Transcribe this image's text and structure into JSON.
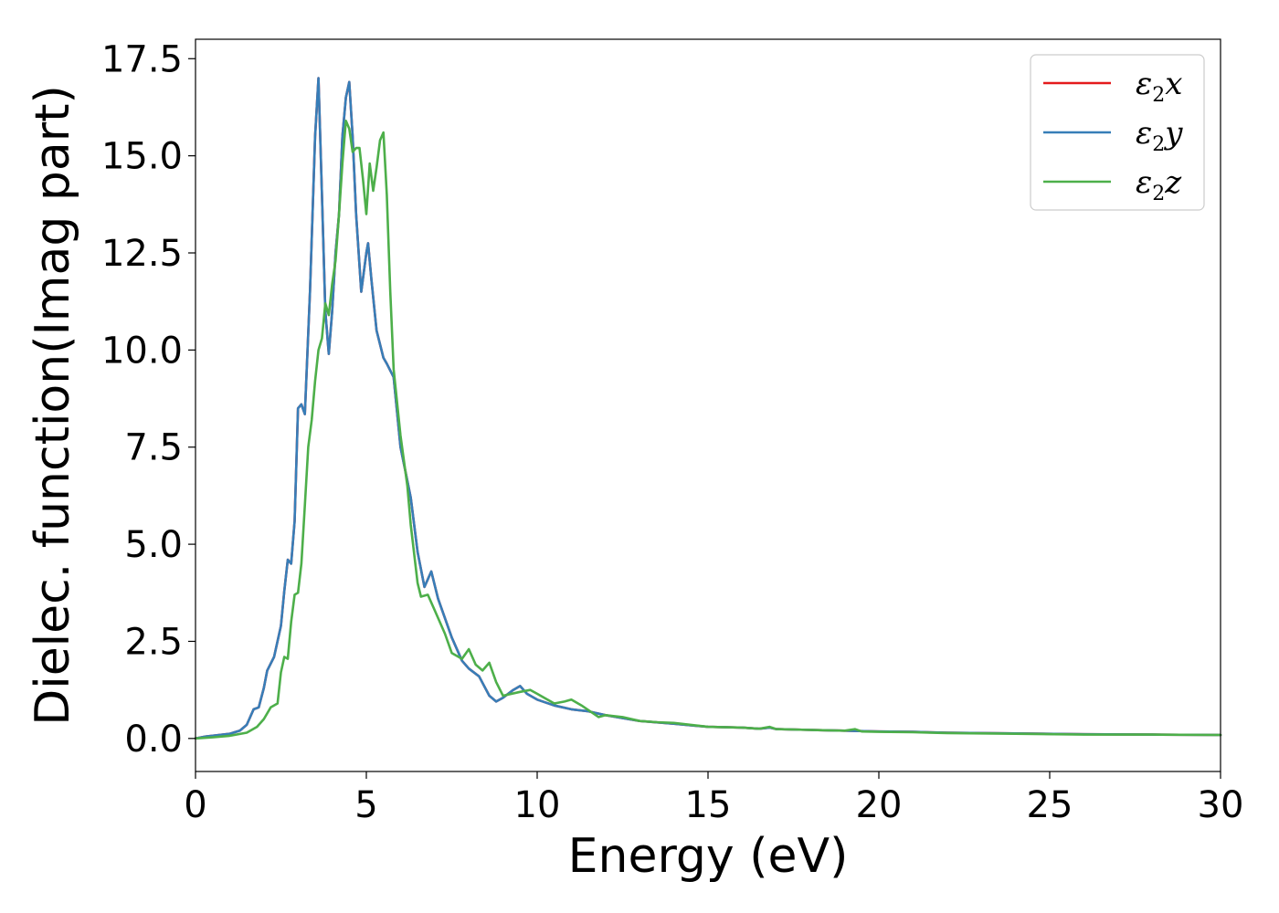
{
  "chart_data": {
    "type": "line",
    "xlabel": "Energy (eV)",
    "ylabel": "Dielec. function(Imag part)",
    "xlim": [
      0,
      30
    ],
    "ylim": [
      -0.85,
      18.0
    ],
    "xticks": [
      0,
      5,
      10,
      15,
      20,
      25,
      30
    ],
    "yticks": [
      0.0,
      2.5,
      5.0,
      7.5,
      10.0,
      12.5,
      15.0,
      17.5
    ],
    "xtick_labels": [
      "0",
      "5",
      "10",
      "15",
      "20",
      "25",
      "30"
    ],
    "ytick_labels": [
      "0.0",
      "2.5",
      "5.0",
      "7.5",
      "10.0",
      "12.5",
      "15.0",
      "17.5"
    ],
    "grid": false,
    "legend_position": "top-right",
    "series": [
      {
        "name": "ε2x",
        "legend": {
          "base": "ε",
          "sub": "2",
          "tail": "x"
        },
        "color": "#e41a1c",
        "hidden_under": "ε2y",
        "points": [
          [
            0,
            0.0
          ],
          [
            0.3,
            0.05
          ],
          [
            0.6,
            0.08
          ],
          [
            1.0,
            0.12
          ],
          [
            1.3,
            0.2
          ],
          [
            1.5,
            0.35
          ],
          [
            1.7,
            0.75
          ],
          [
            1.85,
            0.8
          ],
          [
            2.0,
            1.3
          ],
          [
            2.1,
            1.75
          ],
          [
            2.3,
            2.1
          ],
          [
            2.5,
            2.9
          ],
          [
            2.6,
            3.8
          ],
          [
            2.7,
            4.6
          ],
          [
            2.8,
            4.5
          ],
          [
            2.9,
            5.6
          ],
          [
            3.0,
            8.5
          ],
          [
            3.1,
            8.6
          ],
          [
            3.2,
            8.35
          ],
          [
            3.35,
            11.5
          ],
          [
            3.5,
            15.5
          ],
          [
            3.6,
            17.0
          ],
          [
            3.7,
            14.0
          ],
          [
            3.8,
            11.0
          ],
          [
            3.9,
            9.9
          ],
          [
            4.0,
            11.0
          ],
          [
            4.1,
            12.5
          ],
          [
            4.2,
            13.5
          ],
          [
            4.3,
            15.5
          ],
          [
            4.4,
            16.5
          ],
          [
            4.5,
            16.9
          ],
          [
            4.6,
            15.5
          ],
          [
            4.7,
            13.5
          ],
          [
            4.85,
            11.5
          ],
          [
            5.0,
            12.5
          ],
          [
            5.05,
            12.75
          ],
          [
            5.15,
            11.8
          ],
          [
            5.3,
            10.5
          ],
          [
            5.5,
            9.8
          ],
          [
            5.6,
            9.65
          ],
          [
            5.8,
            9.3
          ],
          [
            6.0,
            7.5
          ],
          [
            6.3,
            6.2
          ],
          [
            6.5,
            4.8
          ],
          [
            6.7,
            3.9
          ],
          [
            6.9,
            4.3
          ],
          [
            7.1,
            3.6
          ],
          [
            7.5,
            2.6
          ],
          [
            7.8,
            2.0
          ],
          [
            8.0,
            1.8
          ],
          [
            8.3,
            1.6
          ],
          [
            8.6,
            1.1
          ],
          [
            8.8,
            0.95
          ],
          [
            9.0,
            1.05
          ],
          [
            9.3,
            1.25
          ],
          [
            9.5,
            1.35
          ],
          [
            9.7,
            1.15
          ],
          [
            10.0,
            1.0
          ],
          [
            10.5,
            0.85
          ],
          [
            11.0,
            0.75
          ],
          [
            11.5,
            0.7
          ],
          [
            12.0,
            0.6
          ],
          [
            13.0,
            0.45
          ],
          [
            14.0,
            0.38
          ],
          [
            15.0,
            0.3
          ],
          [
            16.0,
            0.28
          ],
          [
            16.5,
            0.25
          ],
          [
            16.8,
            0.28
          ],
          [
            17.0,
            0.24
          ],
          [
            18.0,
            0.22
          ],
          [
            19.0,
            0.2
          ],
          [
            20.0,
            0.18
          ],
          [
            21.0,
            0.17
          ],
          [
            22.0,
            0.15
          ],
          [
            24.0,
            0.13
          ],
          [
            26.0,
            0.11
          ],
          [
            28.0,
            0.1
          ],
          [
            30.0,
            0.09
          ]
        ]
      },
      {
        "name": "ε2y",
        "legend": {
          "base": "ε",
          "sub": "2",
          "tail": "y"
        },
        "color": "#377eb8",
        "points": [
          [
            0,
            0.0
          ],
          [
            0.3,
            0.05
          ],
          [
            0.6,
            0.08
          ],
          [
            1.0,
            0.12
          ],
          [
            1.3,
            0.2
          ],
          [
            1.5,
            0.35
          ],
          [
            1.7,
            0.75
          ],
          [
            1.85,
            0.8
          ],
          [
            2.0,
            1.3
          ],
          [
            2.1,
            1.75
          ],
          [
            2.3,
            2.1
          ],
          [
            2.5,
            2.9
          ],
          [
            2.6,
            3.8
          ],
          [
            2.7,
            4.6
          ],
          [
            2.8,
            4.5
          ],
          [
            2.9,
            5.6
          ],
          [
            3.0,
            8.5
          ],
          [
            3.1,
            8.6
          ],
          [
            3.2,
            8.35
          ],
          [
            3.35,
            11.5
          ],
          [
            3.5,
            15.5
          ],
          [
            3.6,
            17.0
          ],
          [
            3.7,
            14.0
          ],
          [
            3.8,
            11.0
          ],
          [
            3.9,
            9.9
          ],
          [
            4.0,
            11.0
          ],
          [
            4.1,
            12.5
          ],
          [
            4.2,
            13.5
          ],
          [
            4.3,
            15.5
          ],
          [
            4.4,
            16.5
          ],
          [
            4.5,
            16.9
          ],
          [
            4.6,
            15.5
          ],
          [
            4.7,
            13.5
          ],
          [
            4.85,
            11.5
          ],
          [
            5.0,
            12.5
          ],
          [
            5.05,
            12.75
          ],
          [
            5.15,
            11.8
          ],
          [
            5.3,
            10.5
          ],
          [
            5.5,
            9.8
          ],
          [
            5.6,
            9.65
          ],
          [
            5.8,
            9.3
          ],
          [
            6.0,
            7.5
          ],
          [
            6.3,
            6.2
          ],
          [
            6.5,
            4.8
          ],
          [
            6.7,
            3.9
          ],
          [
            6.9,
            4.3
          ],
          [
            7.1,
            3.6
          ],
          [
            7.5,
            2.6
          ],
          [
            7.8,
            2.0
          ],
          [
            8.0,
            1.8
          ],
          [
            8.3,
            1.6
          ],
          [
            8.6,
            1.1
          ],
          [
            8.8,
            0.95
          ],
          [
            9.0,
            1.05
          ],
          [
            9.3,
            1.25
          ],
          [
            9.5,
            1.35
          ],
          [
            9.7,
            1.15
          ],
          [
            10.0,
            1.0
          ],
          [
            10.5,
            0.85
          ],
          [
            11.0,
            0.75
          ],
          [
            11.5,
            0.7
          ],
          [
            12.0,
            0.6
          ],
          [
            13.0,
            0.45
          ],
          [
            14.0,
            0.38
          ],
          [
            15.0,
            0.3
          ],
          [
            16.0,
            0.28
          ],
          [
            16.5,
            0.25
          ],
          [
            16.8,
            0.28
          ],
          [
            17.0,
            0.24
          ],
          [
            18.0,
            0.22
          ],
          [
            19.0,
            0.2
          ],
          [
            20.0,
            0.18
          ],
          [
            21.0,
            0.17
          ],
          [
            22.0,
            0.15
          ],
          [
            24.0,
            0.13
          ],
          [
            26.0,
            0.11
          ],
          [
            28.0,
            0.1
          ],
          [
            30.0,
            0.09
          ]
        ]
      },
      {
        "name": "ε2z",
        "legend": {
          "base": "ε",
          "sub": "2",
          "tail": "z"
        },
        "color": "#4daf4a",
        "points": [
          [
            0,
            0.0
          ],
          [
            0.5,
            0.03
          ],
          [
            1.0,
            0.07
          ],
          [
            1.5,
            0.15
          ],
          [
            1.8,
            0.3
          ],
          [
            2.0,
            0.5
          ],
          [
            2.2,
            0.8
          ],
          [
            2.4,
            0.9
          ],
          [
            2.5,
            1.7
          ],
          [
            2.6,
            2.1
          ],
          [
            2.7,
            2.05
          ],
          [
            2.8,
            3.0
          ],
          [
            2.9,
            3.7
          ],
          [
            3.0,
            3.75
          ],
          [
            3.1,
            4.5
          ],
          [
            3.2,
            6.0
          ],
          [
            3.3,
            7.5
          ],
          [
            3.4,
            8.2
          ],
          [
            3.5,
            9.2
          ],
          [
            3.6,
            10.0
          ],
          [
            3.7,
            10.3
          ],
          [
            3.8,
            11.2
          ],
          [
            3.9,
            10.9
          ],
          [
            4.0,
            11.7
          ],
          [
            4.1,
            12.3
          ],
          [
            4.2,
            13.5
          ],
          [
            4.3,
            14.8
          ],
          [
            4.4,
            15.9
          ],
          [
            4.5,
            15.7
          ],
          [
            4.6,
            15.1
          ],
          [
            4.7,
            15.2
          ],
          [
            4.8,
            15.2
          ],
          [
            4.9,
            14.4
          ],
          [
            5.0,
            13.5
          ],
          [
            5.1,
            14.8
          ],
          [
            5.2,
            14.1
          ],
          [
            5.3,
            14.7
          ],
          [
            5.4,
            15.4
          ],
          [
            5.5,
            15.6
          ],
          [
            5.6,
            14.0
          ],
          [
            5.7,
            11.5
          ],
          [
            5.8,
            9.5
          ],
          [
            6.0,
            7.8
          ],
          [
            6.2,
            6.5
          ],
          [
            6.3,
            5.5
          ],
          [
            6.5,
            4.0
          ],
          [
            6.6,
            3.65
          ],
          [
            6.8,
            3.7
          ],
          [
            7.0,
            3.3
          ],
          [
            7.3,
            2.7
          ],
          [
            7.5,
            2.2
          ],
          [
            7.8,
            2.05
          ],
          [
            8.0,
            2.3
          ],
          [
            8.2,
            1.9
          ],
          [
            8.4,
            1.75
          ],
          [
            8.6,
            1.95
          ],
          [
            8.8,
            1.45
          ],
          [
            9.0,
            1.1
          ],
          [
            9.5,
            1.2
          ],
          [
            9.8,
            1.25
          ],
          [
            10.0,
            1.15
          ],
          [
            10.5,
            0.9
          ],
          [
            10.8,
            0.95
          ],
          [
            11.0,
            1.0
          ],
          [
            11.3,
            0.85
          ],
          [
            11.8,
            0.55
          ],
          [
            12.0,
            0.6
          ],
          [
            12.5,
            0.55
          ],
          [
            13.0,
            0.45
          ],
          [
            13.5,
            0.42
          ],
          [
            14.0,
            0.4
          ],
          [
            15.0,
            0.3
          ],
          [
            16.0,
            0.28
          ],
          [
            16.5,
            0.25
          ],
          [
            16.8,
            0.3
          ],
          [
            17.0,
            0.24
          ],
          [
            18.0,
            0.22
          ],
          [
            19.0,
            0.2
          ],
          [
            19.3,
            0.24
          ],
          [
            19.5,
            0.18
          ],
          [
            20.0,
            0.17
          ],
          [
            21.0,
            0.16
          ],
          [
            22.0,
            0.14
          ],
          [
            24.0,
            0.12
          ],
          [
            26.0,
            0.1
          ],
          [
            28.0,
            0.1
          ],
          [
            30.0,
            0.09
          ]
        ]
      }
    ]
  }
}
